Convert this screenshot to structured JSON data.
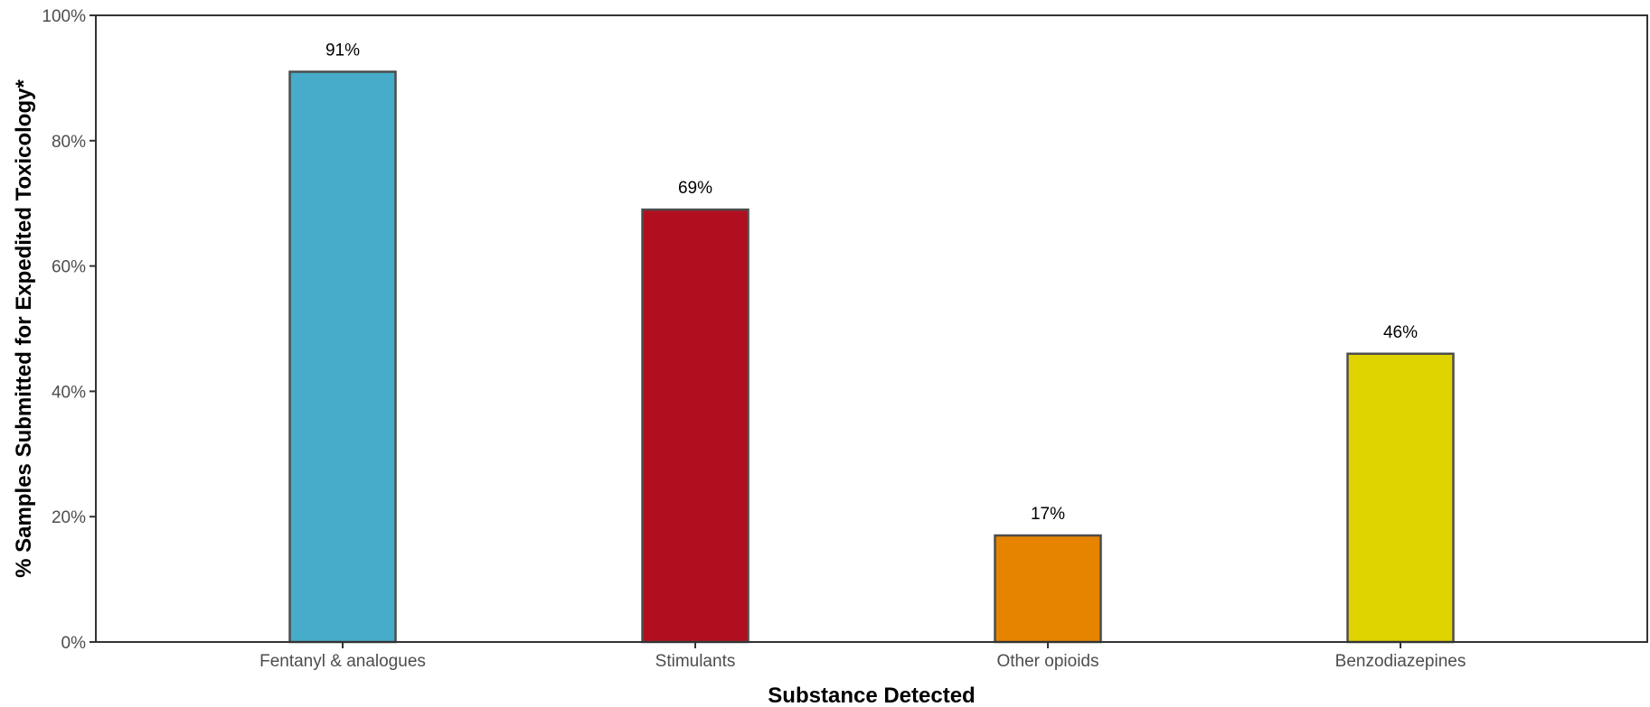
{
  "chart_data": {
    "type": "bar",
    "categories": [
      "Fentanyl & analogues",
      "Stimulants",
      "Other opioids",
      "Benzodiazepines"
    ],
    "values": [
      91,
      69,
      17,
      46
    ],
    "data_labels": [
      "91%",
      "69%",
      "17%",
      "46%"
    ],
    "colors": [
      "#46acca",
      "#b10f20",
      "#e68400",
      "#e0d400"
    ],
    "xlabel": "Substance Detected",
    "ylabel": "% Samples Submitted for Expedited Toxicology*",
    "ylim": [
      0,
      100
    ],
    "yticks": [
      0,
      20,
      40,
      60,
      80,
      100
    ],
    "ytick_labels": [
      "0%",
      "20%",
      "40%",
      "60%",
      "80%",
      "100%"
    ],
    "grid": false,
    "legend": "none"
  }
}
